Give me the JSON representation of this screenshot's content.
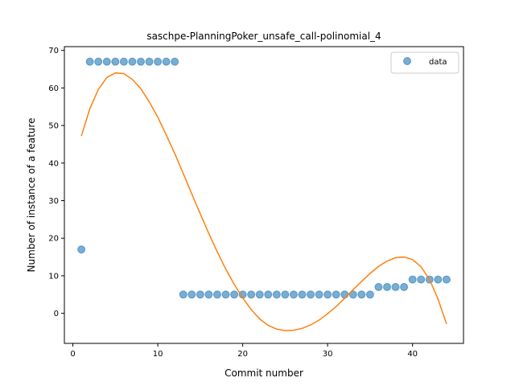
{
  "chart_data": {
    "type": "scatter",
    "title": "saschpe-PlanningPoker_unsafe_call-polinomial_4",
    "xlabel": "Commit number",
    "ylabel": "Number of instance of a feature",
    "xlim": [
      -1,
      46
    ],
    "ylim": [
      -8,
      71
    ],
    "xticks": [
      0,
      10,
      20,
      30,
      40
    ],
    "yticks": [
      0,
      10,
      20,
      30,
      40,
      50,
      60,
      70
    ],
    "grid": false,
    "legend_position": "top-right",
    "series": [
      {
        "name": "data",
        "kind": "scatter",
        "color": "#1f77b4",
        "x": [
          1,
          2,
          3,
          4,
          5,
          6,
          7,
          8,
          9,
          10,
          11,
          12,
          13,
          14,
          15,
          16,
          17,
          18,
          19,
          20,
          21,
          22,
          23,
          24,
          25,
          26,
          27,
          28,
          29,
          30,
          31,
          32,
          33,
          34,
          35,
          36,
          37,
          38,
          39,
          40,
          41,
          42,
          43,
          44
        ],
        "y": [
          17,
          67,
          67,
          67,
          67,
          67,
          67,
          67,
          67,
          67,
          67,
          67,
          5,
          5,
          5,
          5,
          5,
          5,
          5,
          5,
          5,
          5,
          5,
          5,
          5,
          5,
          5,
          5,
          5,
          5,
          5,
          5,
          5,
          5,
          5,
          7,
          7,
          7,
          7,
          9,
          9,
          9,
          9,
          9
        ]
      },
      {
        "kind": "line",
        "color": "#ff7f0e",
        "x": [
          1,
          2,
          3,
          4,
          5,
          6,
          7,
          8,
          9,
          10,
          11,
          12,
          13,
          14,
          15,
          16,
          17,
          18,
          19,
          20,
          21,
          22,
          23,
          24,
          25,
          26,
          27,
          28,
          29,
          30,
          31,
          32,
          33,
          34,
          35,
          36,
          37,
          38,
          39,
          40,
          41,
          42,
          43,
          44
        ],
        "y": [
          47.2,
          54.5,
          59.6,
          62.8,
          64.0,
          63.8,
          62.3,
          59.8,
          56.3,
          52.2,
          47.5,
          42.5,
          37.2,
          31.8,
          26.5,
          21.3,
          16.4,
          11.8,
          7.7,
          4.1,
          1.0,
          -1.5,
          -3.2,
          -4.2,
          -4.6,
          -4.5,
          -4.0,
          -3.1,
          -1.8,
          -0.1,
          1.8,
          4.0,
          6.3,
          8.5,
          10.6,
          12.5,
          13.9,
          14.8,
          15.0,
          14.3,
          12.4,
          9.0,
          3.8,
          -2.8
        ]
      }
    ]
  }
}
